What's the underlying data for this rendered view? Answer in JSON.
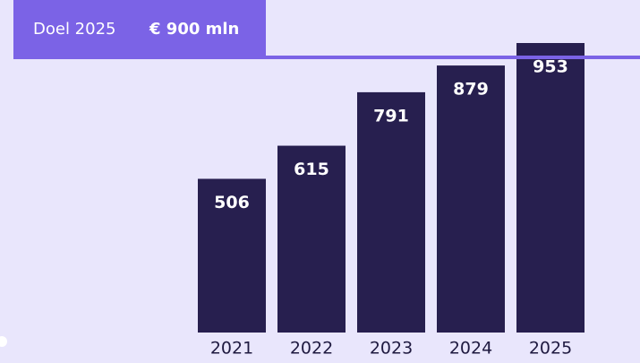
{
  "chart_data": {
    "type": "bar",
    "categories": [
      "2021",
      "2022",
      "2023",
      "2024",
      "2025"
    ],
    "values": [
      506,
      615,
      791,
      879,
      953
    ],
    "color": "#271f4f",
    "target": {
      "label": "Doel 2025",
      "value": 900,
      "value_label": "€ 900 mln",
      "color": "#7b63e6"
    }
  }
}
